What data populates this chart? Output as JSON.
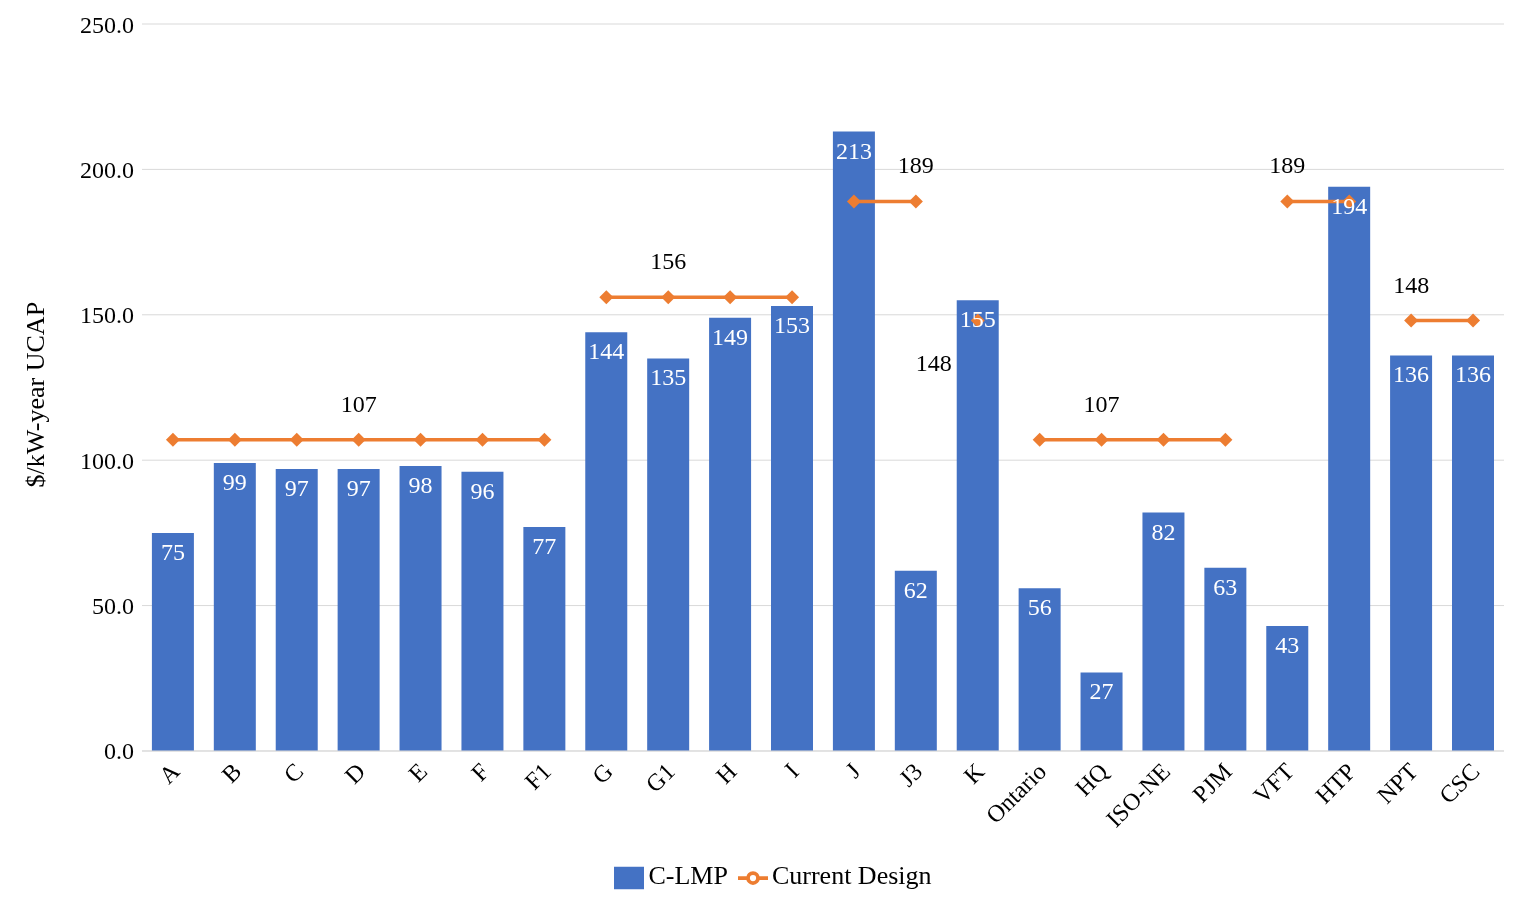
{
  "chart_data": {
    "type": "bar",
    "ylabel": "$/kW-year UCAP",
    "categories": [
      "A",
      "B",
      "C",
      "D",
      "E",
      "F",
      "F1",
      "G",
      "G1",
      "H",
      "I",
      "J",
      "J3",
      "K",
      "Ontario",
      "HQ",
      "ISO-NE",
      "PJM",
      "VFT",
      "HTP",
      "NPT",
      "CSC"
    ],
    "series": [
      {
        "name": "C-LMP",
        "color": "#4472c4",
        "values": [
          75,
          99,
          97,
          97,
          98,
          96,
          77,
          144,
          135,
          149,
          153,
          213,
          62,
          155,
          56,
          27,
          82,
          63,
          43,
          194,
          136,
          136
        ],
        "value_labels": [
          "75",
          "99",
          "97",
          "97",
          "98",
          "96",
          "77",
          "144",
          "135",
          "149",
          "153",
          "213",
          "62",
          "155",
          "56",
          "27",
          "82",
          "63",
          "43",
          "194",
          "136",
          "136"
        ]
      },
      {
        "name": "Current Design",
        "type": "line",
        "color": "#ed7d31",
        "values": [
          107,
          107,
          107,
          107,
          107,
          107,
          107,
          null,
          null,
          null,
          null,
          null,
          null,
          null,
          null,
          null,
          null,
          null,
          null,
          null,
          null,
          null
        ],
        "value_labels": [
          null,
          null,
          null,
          "107",
          null,
          null,
          null,
          null,
          null,
          null,
          null,
          null,
          null,
          null,
          null,
          null,
          null,
          null,
          null,
          null,
          null,
          null
        ]
      },
      {
        "type": "line",
        "color": "#ed7d31",
        "values": [
          null,
          null,
          null,
          null,
          null,
          null,
          null,
          156,
          156,
          156,
          156,
          null,
          null,
          null,
          null,
          null,
          null,
          null,
          null,
          null,
          null,
          null
        ],
        "value_labels": [
          null,
          null,
          null,
          null,
          null,
          null,
          null,
          null,
          "156",
          null,
          null,
          null,
          null,
          null,
          null,
          null,
          null,
          null,
          null,
          null,
          null,
          null
        ]
      },
      {
        "type": "line",
        "color": "#ed7d31",
        "values": [
          null,
          null,
          null,
          null,
          null,
          null,
          null,
          null,
          null,
          null,
          null,
          189,
          189,
          null,
          null,
          null,
          null,
          null,
          null,
          null,
          null,
          null
        ],
        "value_labels": [
          null,
          null,
          null,
          null,
          null,
          null,
          null,
          null,
          null,
          null,
          null,
          null,
          "189",
          null,
          null,
          null,
          null,
          null,
          null,
          null,
          null,
          null
        ]
      },
      {
        "type": "line",
        "color": "#ed7d31",
        "values": [
          null,
          null,
          null,
          null,
          null,
          null,
          null,
          null,
          null,
          null,
          null,
          null,
          null,
          148,
          null,
          null,
          null,
          null,
          null,
          null,
          null,
          null
        ],
        "value_labels": [
          null,
          null,
          null,
          null,
          null,
          null,
          null,
          null,
          null,
          null,
          null,
          null,
          null,
          "148",
          null,
          null,
          null,
          null,
          null,
          null,
          null,
          null
        ]
      },
      {
        "type": "line",
        "color": "#ed7d31",
        "values": [
          null,
          null,
          null,
          null,
          null,
          null,
          null,
          null,
          null,
          null,
          null,
          null,
          null,
          null,
          107,
          107,
          107,
          107,
          null,
          null,
          null,
          null
        ],
        "value_labels": [
          null,
          null,
          null,
          null,
          null,
          null,
          null,
          null,
          null,
          null,
          null,
          null,
          null,
          null,
          null,
          "107",
          null,
          null,
          null,
          null,
          null,
          null
        ]
      },
      {
        "type": "line",
        "color": "#ed7d31",
        "values": [
          null,
          null,
          null,
          null,
          null,
          null,
          null,
          null,
          null,
          null,
          null,
          null,
          null,
          null,
          null,
          null,
          null,
          null,
          189,
          189,
          null,
          null
        ],
        "value_labels": [
          null,
          null,
          null,
          null,
          null,
          null,
          null,
          null,
          null,
          null,
          null,
          null,
          null,
          null,
          null,
          null,
          null,
          null,
          "189",
          null,
          null,
          null
        ]
      },
      {
        "type": "line",
        "color": "#ed7d31",
        "values": [
          null,
          null,
          null,
          null,
          null,
          null,
          null,
          null,
          null,
          null,
          null,
          null,
          null,
          null,
          null,
          null,
          null,
          null,
          null,
          null,
          148,
          148
        ],
        "value_labels": [
          null,
          null,
          null,
          null,
          null,
          null,
          null,
          null,
          null,
          null,
          null,
          null,
          null,
          null,
          null,
          null,
          null,
          null,
          null,
          null,
          "148",
          null
        ]
      }
    ],
    "ylim": [
      0,
      250
    ],
    "yticks": [
      {
        "value": 0,
        "label": "0.0"
      },
      {
        "value": 50,
        "label": "50.0"
      },
      {
        "value": 100,
        "label": "100.0"
      },
      {
        "value": 150,
        "label": "150.0"
      },
      {
        "value": 200,
        "label": "200.0"
      },
      {
        "value": 250,
        "label": "250.0"
      }
    ],
    "grid": "y",
    "legend": "bottom",
    "marker": "diamond",
    "line_style": "solid"
  }
}
